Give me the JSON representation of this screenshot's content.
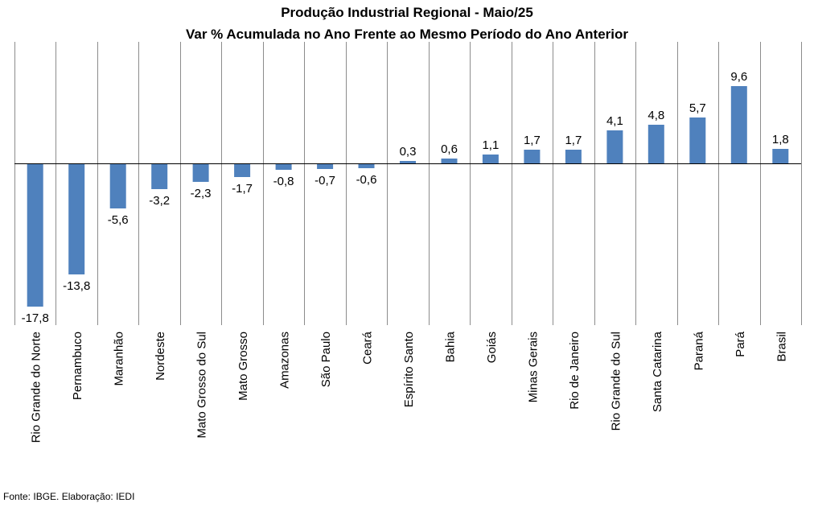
{
  "chart_data": {
    "type": "bar",
    "title": "Produção Industrial Regional - Maio/25",
    "subtitle": "Var % Acumulada no Ano Frente ao Mesmo Período do Ano Anterior",
    "xlabel": "",
    "ylabel": "",
    "ylim": [
      -17.8,
      9.6
    ],
    "grid": false,
    "legend": "none",
    "bar_color": "#4F81BD",
    "categories": [
      "Rio Grande do Norte",
      "Pernambuco",
      "Maranhão",
      "Nordeste",
      "Mato Grosso do Sul",
      "Mato Grosso",
      "Amazonas",
      "São Paulo",
      "Ceará",
      "Espírito Santo",
      "Bahia",
      "Goiás",
      "Minas Gerais",
      "Rio de Janeiro",
      "Rio Grande do Sul",
      "Santa Catarina",
      "Paraná",
      "Pará",
      "Brasil"
    ],
    "values": [
      -17.8,
      -13.8,
      -5.6,
      -3.2,
      -2.3,
      -1.7,
      -0.8,
      -0.7,
      -0.6,
      0.3,
      0.6,
      1.1,
      1.7,
      1.7,
      4.1,
      4.8,
      5.7,
      9.6,
      1.8
    ],
    "value_labels": [
      "-17,8",
      "-13,8",
      "-5,6",
      "-3,2",
      "-2,3",
      "-1,7",
      "-0,8",
      "-0,7",
      "-0,6",
      "0,3",
      "0,6",
      "1,1",
      "1,7",
      "1,7",
      "4,1",
      "4,8",
      "5,7",
      "9,6",
      "1,8"
    ]
  },
  "footer": {
    "source": "Fonte: IBGE. Elaboração: IEDI"
  }
}
